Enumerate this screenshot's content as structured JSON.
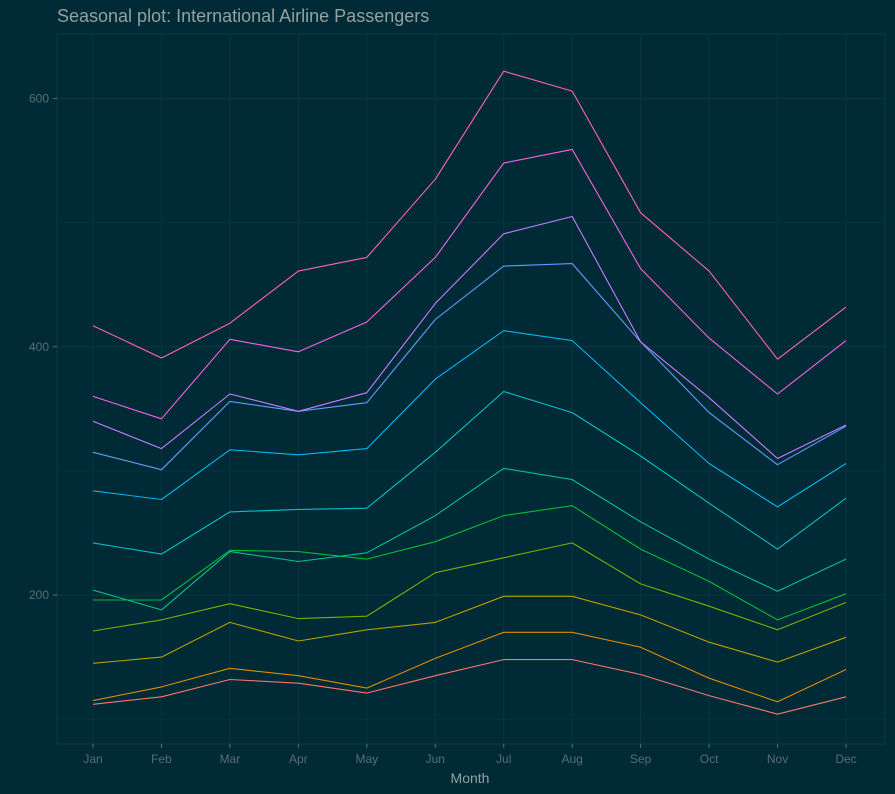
{
  "chart_data": {
    "type": "line",
    "title": "Seasonal plot: International Airline Passengers",
    "xlabel": "Month",
    "ylabel": "",
    "categories": [
      "Jan",
      "Feb",
      "Mar",
      "Apr",
      "May",
      "Jun",
      "Jul",
      "Aug",
      "Sep",
      "Oct",
      "Nov",
      "Dec"
    ],
    "y_ticks": [
      200,
      400,
      600
    ],
    "ylim": [
      80,
      652
    ],
    "grid": true,
    "legend": "none",
    "series": [
      {
        "values": [
          112,
          118,
          132,
          129,
          121,
          135,
          148,
          148,
          136,
          119,
          104,
          118
        ],
        "color": "#f8766d"
      },
      {
        "values": [
          115,
          126,
          141,
          135,
          125,
          149,
          170,
          170,
          158,
          133,
          114,
          140
        ],
        "color": "#de8c00"
      },
      {
        "values": [
          145,
          150,
          178,
          163,
          172,
          178,
          199,
          199,
          184,
          162,
          146,
          166
        ],
        "color": "#b79f00"
      },
      {
        "values": [
          171,
          180,
          193,
          181,
          183,
          218,
          230,
          242,
          209,
          191,
          172,
          194
        ],
        "color": "#7cae00"
      },
      {
        "values": [
          196,
          196,
          236,
          235,
          229,
          243,
          264,
          272,
          237,
          211,
          180,
          201
        ],
        "color": "#00ba38"
      },
      {
        "values": [
          204,
          188,
          235,
          227,
          234,
          264,
          302,
          293,
          259,
          229,
          203,
          229
        ],
        "color": "#00c08b"
      },
      {
        "values": [
          242,
          233,
          267,
          269,
          270,
          315,
          364,
          347,
          312,
          274,
          237,
          278
        ],
        "color": "#00bfc4"
      },
      {
        "values": [
          284,
          277,
          317,
          313,
          318,
          374,
          413,
          405,
          355,
          306,
          271,
          306
        ],
        "color": "#00b4f0"
      },
      {
        "values": [
          315,
          301,
          356,
          348,
          355,
          422,
          465,
          467,
          404,
          347,
          305,
          336
        ],
        "color": "#619cff"
      },
      {
        "values": [
          340,
          318,
          362,
          348,
          363,
          435,
          491,
          505,
          404,
          359,
          310,
          337
        ],
        "color": "#c77cff"
      },
      {
        "values": [
          360,
          342,
          406,
          396,
          420,
          472,
          548,
          559,
          463,
          407,
          362,
          405
        ],
        "color": "#f564e3"
      },
      {
        "values": [
          417,
          391,
          419,
          461,
          472,
          535,
          622,
          606,
          508,
          461,
          390,
          432
        ],
        "color": "#ff64b0"
      }
    ]
  }
}
